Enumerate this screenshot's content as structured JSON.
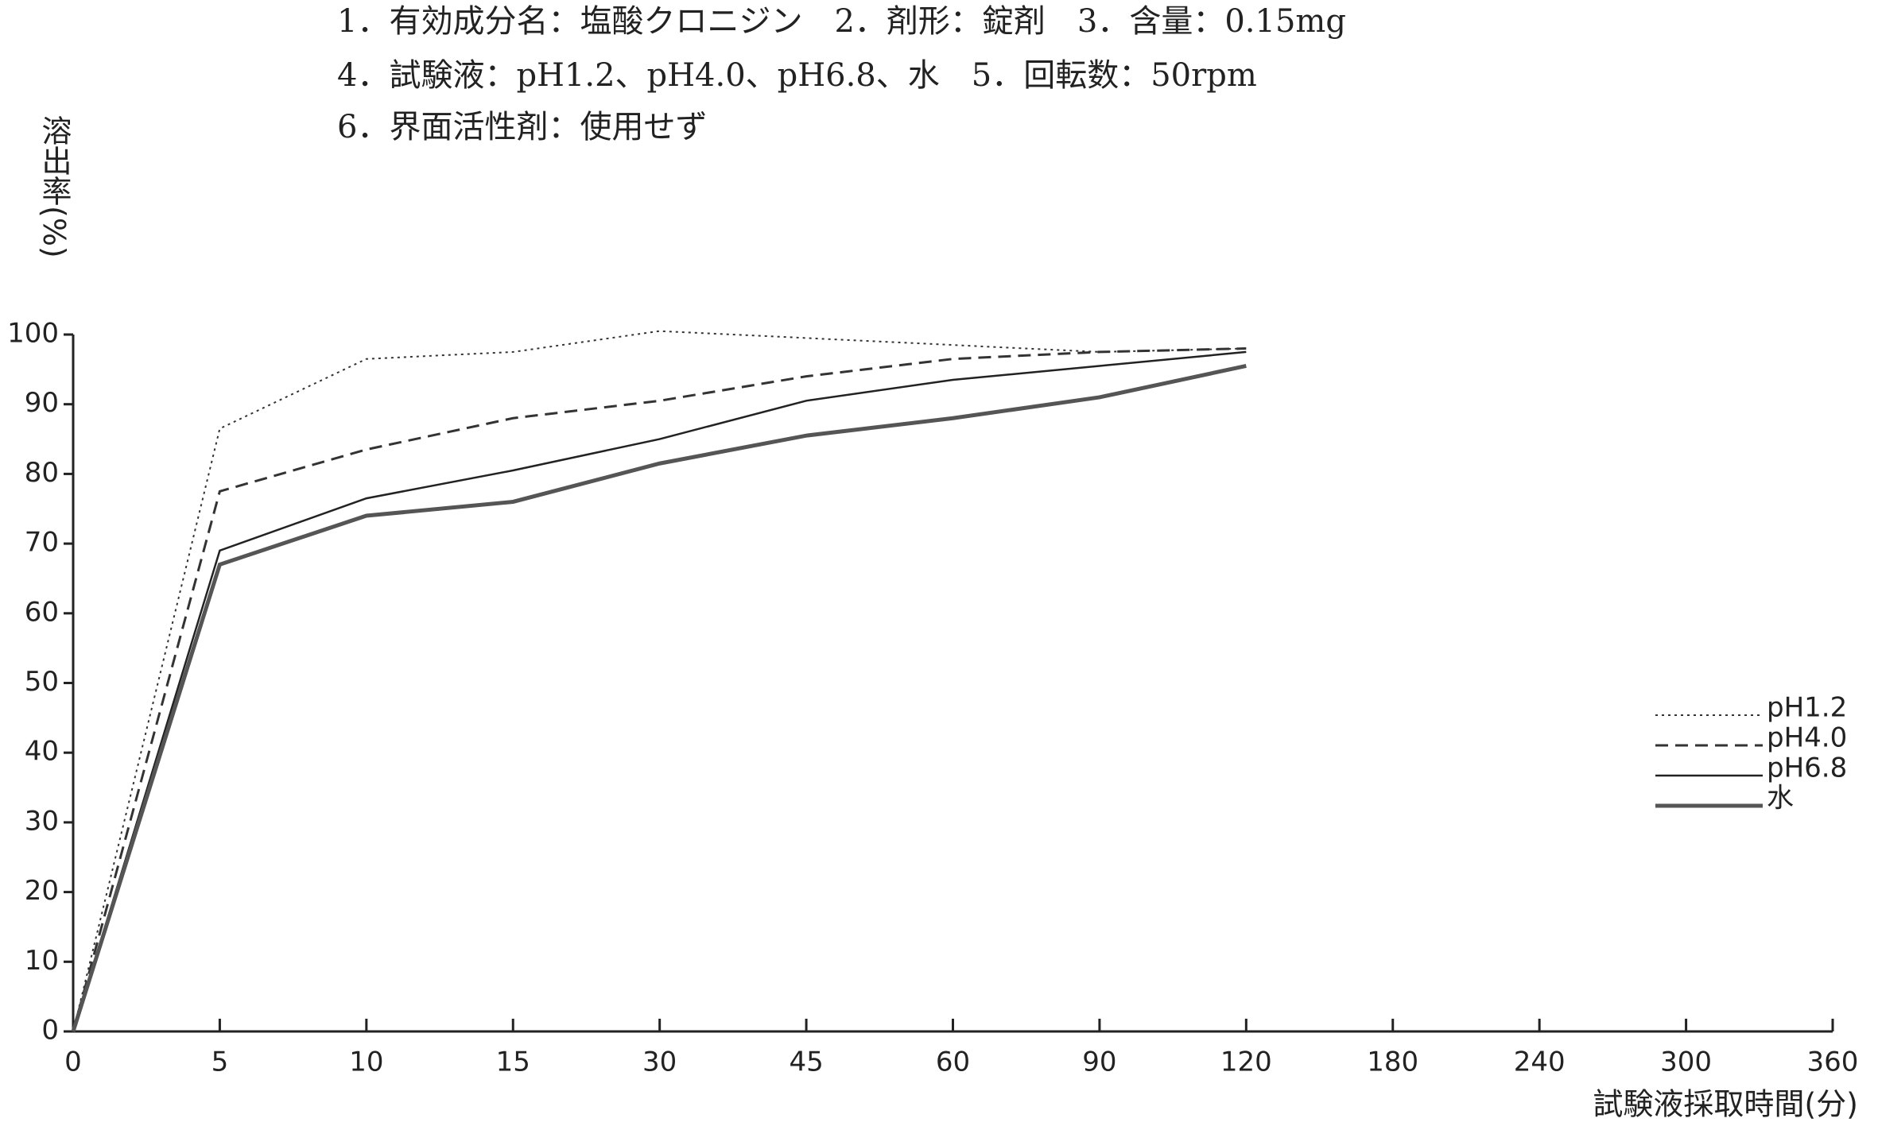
{
  "chart_data": {
    "type": "line",
    "annotations": [
      "1．有効成分名：塩酸クロニジン　2．剤形：錠剤　3．含量：0.15mg",
      "4．試験液：pH1.2、pH4.0、pH6.8、水　5．回転数：50rpm",
      "6．界面活性剤：使用せず"
    ],
    "y_label": "溶出率(%)",
    "x_label": "試験液採取時間(分)",
    "categories": [
      "0",
      "5",
      "10",
      "15",
      "30",
      "45",
      "60",
      "90",
      "120",
      "180",
      "240",
      "300",
      "360"
    ],
    "ylim": [
      0,
      100
    ],
    "yticks": [
      0,
      10,
      20,
      30,
      40,
      50,
      60,
      70,
      80,
      90,
      100
    ],
    "legend": "right",
    "series": [
      {
        "name": "pH1.2",
        "color": "#333333",
        "style": "dotted",
        "values": [
          0,
          86.5,
          96.5,
          97.5,
          100.5,
          99.5,
          98.5,
          97.5,
          98,
          null,
          null,
          null,
          null
        ]
      },
      {
        "name": "pH4.0",
        "color": "#333333",
        "style": "dashed",
        "values": [
          0,
          77.5,
          83.5,
          88,
          90.5,
          94,
          96.5,
          97.5,
          98,
          null,
          null,
          null,
          null
        ]
      },
      {
        "name": "pH6.8",
        "color": "#222222",
        "style": "solid",
        "values": [
          0,
          69,
          76.5,
          80.5,
          85,
          90.5,
          93.5,
          95.5,
          97.5,
          null,
          null,
          null,
          null
        ]
      },
      {
        "name": "水",
        "color": "#555555",
        "style": "thick",
        "values": [
          0,
          67,
          74,
          76,
          81.5,
          85.5,
          88,
          91,
          95.5,
          null,
          null,
          null,
          null
        ]
      }
    ]
  }
}
